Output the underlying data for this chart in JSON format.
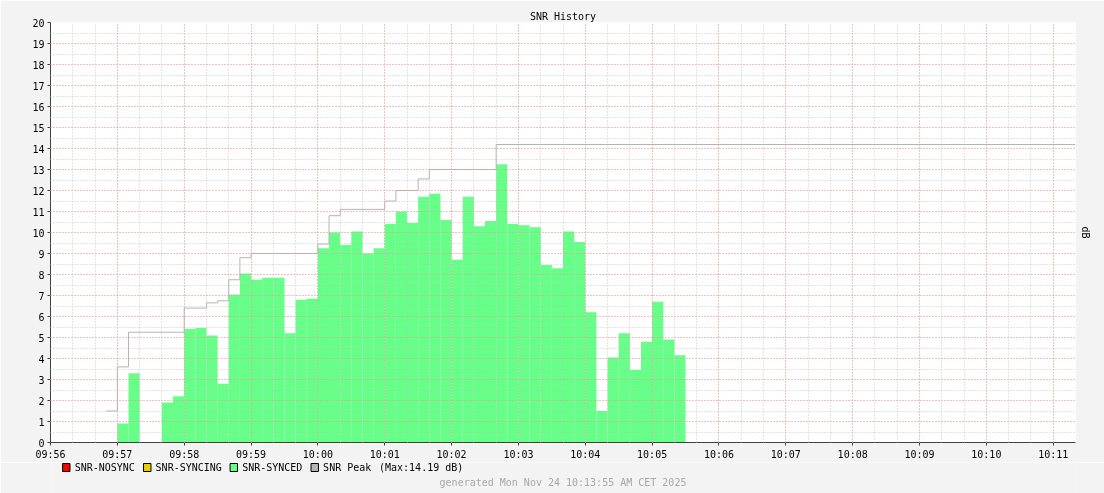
{
  "chart_data": {
    "type": "bar",
    "title": "SNR History",
    "ylabel": "dB",
    "x": [
      "2025-11-24T09:57:05",
      "2025-11-24T09:57:15",
      "2025-11-24T09:57:25",
      "2025-11-24T09:57:35",
      "2025-11-24T09:57:45",
      "2025-11-24T09:57:55",
      "2025-11-24T09:58:05",
      "2025-11-24T09:58:15",
      "2025-11-24T09:58:25",
      "2025-11-24T09:58:35",
      "2025-11-24T09:58:45",
      "2025-11-24T09:58:55",
      "2025-11-24T09:59:05",
      "2025-11-24T09:59:15",
      "2025-11-24T09:59:25",
      "2025-11-24T09:59:35",
      "2025-11-24T09:59:45",
      "2025-11-24T09:59:55",
      "2025-11-24T10:00:05",
      "2025-11-24T10:00:15",
      "2025-11-24T10:00:25",
      "2025-11-24T10:00:35",
      "2025-11-24T10:00:45",
      "2025-11-24T10:00:55",
      "2025-11-24T10:01:05",
      "2025-11-24T10:01:15",
      "2025-11-24T10:01:25",
      "2025-11-24T10:01:35",
      "2025-11-24T10:01:45",
      "2025-11-24T10:01:55",
      "2025-11-24T10:02:05",
      "2025-11-24T10:02:15",
      "2025-11-24T10:02:25",
      "2025-11-24T10:02:35",
      "2025-11-24T10:02:45",
      "2025-11-24T10:02:55",
      "2025-11-24T10:03:05",
      "2025-11-24T10:03:15",
      "2025-11-24T10:03:25",
      "2025-11-24T10:03:35",
      "2025-11-24T10:03:45",
      "2025-11-24T10:03:55",
      "2025-11-24T10:04:05",
      "2025-11-24T10:04:15",
      "2025-11-24T10:04:25",
      "2025-11-24T10:04:35",
      "2025-11-24T10:04:45",
      "2025-11-24T10:04:55",
      "2025-11-24T10:05:05",
      "2025-11-24T10:05:15",
      "2025-11-24T10:05:25"
    ],
    "series": [
      {
        "name": "SNR-NOSYNC",
        "color": "#ff0000",
        "values": [
          null,
          null,
          null,
          null,
          null,
          null,
          null,
          null,
          null,
          null,
          null,
          null,
          null,
          null,
          null,
          null,
          null,
          null,
          null,
          null,
          null,
          null,
          null,
          null,
          null,
          null,
          null,
          null,
          null,
          null,
          null,
          null,
          null,
          null,
          null,
          null,
          null,
          null,
          null,
          null,
          null,
          null,
          null,
          null,
          null,
          null,
          null,
          null,
          null,
          null,
          null
        ]
      },
      {
        "name": "SNR-SYNCING",
        "color": "#e6d200",
        "values": [
          null,
          null,
          null,
          null,
          null,
          null,
          null,
          null,
          null,
          null,
          null,
          null,
          null,
          null,
          null,
          null,
          null,
          null,
          null,
          null,
          null,
          null,
          null,
          null,
          null,
          null,
          null,
          null,
          null,
          null,
          null,
          null,
          null,
          null,
          null,
          null,
          null,
          null,
          null,
          null,
          null,
          null,
          null,
          null,
          null,
          null,
          null,
          null,
          null,
          null,
          null
        ]
      },
      {
        "name": "SNR-SYNCED",
        "color": "#66ff88",
        "values": [
          0.9,
          3.3,
          null,
          null,
          1.9,
          2.2,
          5.4,
          5.45,
          5.1,
          2.8,
          7.05,
          8.05,
          7.75,
          7.85,
          7.85,
          5.2,
          6.8,
          6.85,
          9.25,
          10.0,
          9.4,
          10.05,
          9.0,
          9.25,
          10.4,
          11.0,
          10.45,
          11.7,
          11.85,
          10.6,
          8.7,
          11.7,
          10.3,
          10.55,
          13.25,
          10.4,
          10.35,
          10.25,
          8.45,
          8.3,
          10.05,
          9.55,
          6.2,
          1.5,
          4.05,
          5.2,
          3.45,
          4.8,
          6.7,
          4.9,
          4.15
        ]
      },
      {
        "name": "SNR Peak",
        "type": "step",
        "color": "#b4b4b4",
        "x": [
          "2025-11-24T09:56:50",
          "2025-11-24T09:57:00",
          "2025-11-24T09:57:10",
          "2025-11-24T09:58:00",
          "2025-11-24T09:58:20",
          "2025-11-24T09:58:30",
          "2025-11-24T09:58:40",
          "2025-11-24T09:58:50",
          "2025-11-24T09:59:00",
          "2025-11-24T10:00:00",
          "2025-11-24T10:00:10",
          "2025-11-24T10:00:20",
          "2025-11-24T10:01:00",
          "2025-11-24T10:01:10",
          "2025-11-24T10:01:30",
          "2025-11-24T10:01:40",
          "2025-11-24T10:02:40",
          "2025-11-24T10:11:20"
        ],
        "values": [
          1.5,
          3.6,
          5.25,
          6.4,
          6.65,
          6.75,
          7.75,
          8.8,
          9.0,
          9.45,
          10.8,
          11.1,
          11.5,
          12.0,
          12.55,
          13.0,
          14.19,
          14.19
        ]
      }
    ],
    "xlim": [
      "2025-11-24T09:56:00",
      "2025-11-24T10:11:20"
    ],
    "xticks": [
      {
        "value": "2025-11-24T09:56",
        "label": "09:56"
      },
      {
        "value": "2025-11-24T09:57",
        "label": "09:57"
      },
      {
        "value": "2025-11-24T09:58",
        "label": "09:58"
      },
      {
        "value": "2025-11-24T09:59",
        "label": "09:59"
      },
      {
        "value": "2025-11-24T10:00",
        "label": "10:00"
      },
      {
        "value": "2025-11-24T10:01",
        "label": "10:01"
      },
      {
        "value": "2025-11-24T10:02",
        "label": "10:02"
      },
      {
        "value": "2025-11-24T10:03",
        "label": "10:03"
      },
      {
        "value": "2025-11-24T10:04",
        "label": "10:04"
      },
      {
        "value": "2025-11-24T10:05",
        "label": "10:05"
      },
      {
        "value": "2025-11-24T10:06",
        "label": "10:06"
      },
      {
        "value": "2025-11-24T10:07",
        "label": "10:07"
      },
      {
        "value": "2025-11-24T10:08",
        "label": "10:08"
      },
      {
        "value": "2025-11-24T10:09",
        "label": "10:09"
      },
      {
        "value": "2025-11-24T10:10",
        "label": "10:10"
      },
      {
        "value": "2025-11-24T10:11",
        "label": "10:11"
      }
    ],
    "ylim": [
      0,
      20
    ],
    "yticks": [
      0,
      1,
      2,
      3,
      4,
      5,
      6,
      7,
      8,
      9,
      10,
      11,
      12,
      13,
      14,
      15,
      16,
      17,
      18,
      19,
      20
    ],
    "grid": true,
    "legend": "bottom left",
    "annotations": [
      "(Max:14.19 dB)",
      "generated Mon Nov 24 10:13:55 AM CET 2025"
    ]
  }
}
